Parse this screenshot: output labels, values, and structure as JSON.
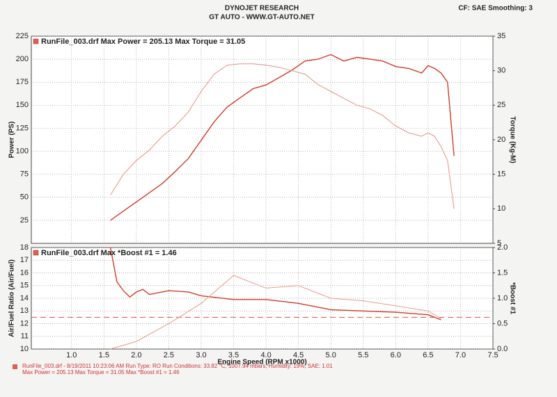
{
  "header": {
    "title": "DYNOJET RESEARCH",
    "subtitle": "GT AUTO - WWW.GT-AUTO.NET",
    "settings": "CF: SAE  Smoothing: 3"
  },
  "footer": {
    "lines": [
      "RunFile_003.drf - 8/19/2011 10:23:06 AM  Run Type: RO  Run Conditions: 33.82 °C, 1007.94 mbars,  Humidity: 19%, SAE: 1.01",
      "Max Power = 205.13  Max Torque = 31.05  Max *Boost #1 = 1.46"
    ]
  },
  "chart_data": [
    {
      "type": "line",
      "annotation": "RunFile_003.drf Max Power = 205.13     Max Torque = 31.05",
      "ylabel": "Power (PS)",
      "y2label": "Torque (Kg-M)",
      "xlim": [
        0.38,
        7.5
      ],
      "xticks": [
        1.0,
        1.5,
        2.0,
        2.5,
        3.0,
        3.5,
        4.0,
        4.5,
        5.0,
        5.5,
        6.0,
        6.5,
        7.0,
        7.5
      ],
      "ylim": [
        0,
        225
      ],
      "yticks": [
        25,
        50,
        75,
        100,
        125,
        150,
        175,
        200,
        225
      ],
      "y2lim": [
        5,
        35
      ],
      "y2ticks": [
        5,
        10,
        15,
        20,
        25,
        30,
        35
      ],
      "grid": true,
      "series": [
        {
          "color": "#d23a28",
          "axis": "y",
          "x": [
            1.6,
            1.8,
            2.0,
            2.2,
            2.4,
            2.6,
            2.8,
            3.0,
            3.2,
            3.4,
            3.6,
            3.8,
            4.0,
            4.2,
            4.4,
            4.6,
            4.8,
            5.0,
            5.2,
            5.4,
            5.6,
            5.8,
            6.0,
            6.2,
            6.4,
            6.5,
            6.6,
            6.7,
            6.8,
            6.9
          ],
          "values": [
            25,
            35,
            45,
            55,
            65,
            78,
            92,
            112,
            132,
            148,
            158,
            168,
            172,
            180,
            188,
            198,
            200,
            205,
            198,
            202,
            200,
            198,
            192,
            190,
            185,
            193,
            190,
            185,
            175,
            95
          ]
        },
        {
          "color": "#e8907f",
          "axis": "y2",
          "x": [
            1.6,
            1.8,
            2.0,
            2.2,
            2.4,
            2.6,
            2.8,
            3.0,
            3.2,
            3.4,
            3.6,
            3.8,
            4.0,
            4.2,
            4.4,
            4.6,
            4.8,
            5.0,
            5.2,
            5.4,
            5.6,
            5.8,
            6.0,
            6.2,
            6.4,
            6.5,
            6.6,
            6.7,
            6.8,
            6.9
          ],
          "values": [
            12,
            15,
            17,
            18.5,
            20.5,
            22,
            24,
            27,
            29.5,
            30.8,
            31,
            31,
            30.8,
            30.5,
            30,
            29.5,
            28,
            27,
            26,
            25,
            24.5,
            23.5,
            22,
            21,
            20.5,
            21,
            20.5,
            19,
            17,
            10
          ]
        }
      ]
    },
    {
      "type": "line",
      "annotation": "RunFile_003.drf Max *Boost #1 = 1.46",
      "xlabel": "Engine Speed (RPM x1000)",
      "ylabel": "Air/Fuel Ratio (Air/Fuel)",
      "y2label": "*Boost #1",
      "xlim": [
        0.38,
        7.5
      ],
      "xticks": [
        {
          "value": 1.0,
          "label": "1.0"
        },
        {
          "value": 1.5,
          "label": "1.5"
        },
        {
          "value": 2.0,
          "label": "2.0"
        },
        {
          "value": 2.5,
          "label": "2.5"
        },
        {
          "value": 3.0,
          "label": "3.0"
        },
        {
          "value": 3.5,
          "label": "3.5"
        },
        {
          "value": 4.0,
          "label": "4.0"
        },
        {
          "value": 4.5,
          "label": "4.5"
        },
        {
          "value": 5.0,
          "label": "5.0"
        },
        {
          "value": 5.5,
          "label": "5.5"
        },
        {
          "value": 6.0,
          "label": "6.0"
        },
        {
          "value": 6.5,
          "label": "6.5"
        },
        {
          "value": 7.0,
          "label": "7.0"
        },
        {
          "value": 7.5,
          "label": "7.5"
        }
      ],
      "ylim": [
        10,
        18
      ],
      "yticks": [
        10,
        11,
        12,
        13,
        14,
        15,
        16,
        17,
        18
      ],
      "y2lim": [
        0,
        2
      ],
      "y2ticks": [
        {
          "value": 0,
          "label": "0.0"
        },
        {
          "value": 0.5,
          "label": "0.5"
        },
        {
          "value": 1,
          "label": "1.0"
        },
        {
          "value": 1.5,
          "label": "1.5"
        },
        {
          "value": 2,
          "label": "2.0"
        }
      ],
      "grid": true,
      "hline": {
        "value": 12.5,
        "color": "#e05040"
      },
      "series": [
        {
          "color": "#d23a28",
          "axis": "y",
          "x": [
            1.6,
            1.7,
            1.8,
            1.9,
            2.0,
            2.1,
            2.2,
            2.5,
            2.8,
            3.0,
            3.5,
            4.0,
            4.5,
            5.0,
            5.5,
            6.0,
            6.5,
            6.7
          ],
          "values": [
            18,
            15.3,
            14.6,
            14.1,
            14.5,
            14.7,
            14.3,
            14.6,
            14.5,
            14.2,
            13.9,
            13.9,
            13.6,
            13.1,
            13.0,
            12.9,
            12.7,
            12.3
          ]
        },
        {
          "color": "#eb9a88",
          "axis": "y2",
          "x": [
            1.6,
            2.0,
            2.5,
            3.0,
            3.5,
            4.0,
            4.5,
            5.0,
            5.5,
            6.0,
            6.5,
            6.7
          ],
          "values": [
            0,
            0.15,
            0.5,
            0.9,
            1.45,
            1.2,
            1.25,
            1.0,
            0.95,
            0.85,
            0.75,
            0.6
          ]
        }
      ]
    }
  ]
}
